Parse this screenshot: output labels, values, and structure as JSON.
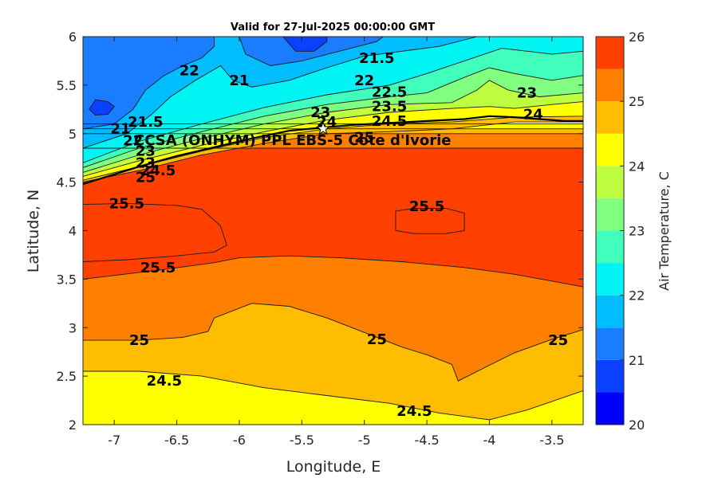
{
  "chart_data": {
    "type": "contour",
    "title": "Valid for 27-Jul-2025 00:00:00 GMT",
    "xlabel": "Longitude, E",
    "ylabel": "Latitude, N",
    "colorbar_label": "Air Temperature, C",
    "xlim": [
      -7.25,
      -3.25
    ],
    "ylim": [
      2,
      6
    ],
    "xticks": [
      -7,
      -6.5,
      -6,
      -5.5,
      -5,
      -4.5,
      -4,
      -3.5
    ],
    "xtick_labels": [
      "-7",
      "-6.5",
      "-6",
      "-5.5",
      "-5",
      "-4.5",
      "-4",
      "-3.5"
    ],
    "yticks": [
      2,
      2.5,
      3,
      3.5,
      4,
      4.5,
      5,
      5.5,
      6
    ],
    "ytick_labels": [
      "2",
      "2.5",
      "3",
      "3.5",
      "4",
      "4.5",
      "5",
      "5.5",
      "6"
    ],
    "colorbar": {
      "min": 20,
      "max": 26,
      "ticks": [
        20,
        21,
        22,
        23,
        24,
        25,
        26
      ],
      "tick_labels": [
        "20",
        "21",
        "22",
        "23",
        "24",
        "25",
        "26"
      ],
      "levels": [
        {
          "from": 20,
          "to": 20.5,
          "color": "#0000ff"
        },
        {
          "from": 20.5,
          "to": 21,
          "color": "#0a40ff"
        },
        {
          "from": 21,
          "to": 21.5,
          "color": "#1a7dff"
        },
        {
          "from": 21.5,
          "to": 22,
          "color": "#00bdff"
        },
        {
          "from": 22,
          "to": 22.5,
          "color": "#00f4f4"
        },
        {
          "from": 22.5,
          "to": 23,
          "color": "#40ffbd"
        },
        {
          "from": 23,
          "to": 23.5,
          "color": "#80ff80"
        },
        {
          "from": 23.5,
          "to": 24,
          "color": "#bdff40"
        },
        {
          "from": 24,
          "to": 24.5,
          "color": "#ffff00"
        },
        {
          "from": 24.5,
          "to": 25,
          "color": "#ffbd00"
        },
        {
          "from": 25,
          "to": 25.5,
          "color": "#ff8000"
        },
        {
          "from": 25.5,
          "to": 26,
          "color": "#ff4000"
        }
      ]
    },
    "regions": [
      {
        "level": 24.0,
        "points": [
          [
            -7.25,
            2.0
          ],
          [
            -3.25,
            2.0
          ],
          [
            -3.25,
            5.1
          ],
          [
            -7.25,
            5.1
          ]
        ]
      },
      {
        "level": 24.5,
        "points": [
          [
            -7.25,
            2.55
          ],
          [
            -6.8,
            2.55
          ],
          [
            -6.3,
            2.5
          ],
          [
            -5.8,
            2.38
          ],
          [
            -5.3,
            2.3
          ],
          [
            -4.8,
            2.22
          ],
          [
            -4.4,
            2.12
          ],
          [
            -4.0,
            2.05
          ],
          [
            -3.7,
            2.15
          ],
          [
            -3.25,
            2.35
          ],
          [
            -3.25,
            5.05
          ],
          [
            -7.25,
            5.05
          ]
        ]
      },
      {
        "level": 25.0,
        "points": [
          [
            -7.25,
            2.87
          ],
          [
            -6.8,
            2.87
          ],
          [
            -6.45,
            2.9
          ],
          [
            -6.25,
            2.96
          ],
          [
            -6.2,
            3.1
          ],
          [
            -5.9,
            3.25
          ],
          [
            -5.6,
            3.22
          ],
          [
            -5.3,
            3.1
          ],
          [
            -5.0,
            2.95
          ],
          [
            -4.7,
            2.8
          ],
          [
            -4.5,
            2.72
          ],
          [
            -4.3,
            2.62
          ],
          [
            -4.25,
            2.45
          ],
          [
            -4.05,
            2.58
          ],
          [
            -3.8,
            2.74
          ],
          [
            -3.5,
            2.88
          ],
          [
            -3.25,
            2.98
          ],
          [
            -3.25,
            5.0
          ],
          [
            -7.25,
            5.0
          ]
        ]
      },
      {
        "level": 25.5,
        "points": [
          [
            -7.25,
            3.5
          ],
          [
            -6.6,
            3.6
          ],
          [
            -6.2,
            3.67
          ],
          [
            -6.0,
            3.72
          ],
          [
            -5.6,
            3.74
          ],
          [
            -5.2,
            3.72
          ],
          [
            -4.7,
            3.68
          ],
          [
            -4.2,
            3.62
          ],
          [
            -3.8,
            3.55
          ],
          [
            -3.5,
            3.48
          ],
          [
            -3.25,
            3.42
          ],
          [
            -3.25,
            4.85
          ],
          [
            -7.25,
            4.85
          ]
        ]
      },
      {
        "level": 25.5,
        "points": [
          [
            -7.25,
            4.27
          ],
          [
            -6.9,
            4.28
          ],
          [
            -6.5,
            4.26
          ],
          [
            -6.3,
            4.22
          ],
          [
            -6.15,
            4.05
          ],
          [
            -6.1,
            3.85
          ],
          [
            -6.2,
            3.78
          ],
          [
            -6.5,
            3.74
          ],
          [
            -6.9,
            3.7
          ],
          [
            -7.25,
            3.68
          ]
        ]
      },
      {
        "level": 25.5,
        "points": [
          [
            -4.75,
            4.2
          ],
          [
            -4.6,
            4.23
          ],
          [
            -4.35,
            4.23
          ],
          [
            -4.2,
            4.18
          ],
          [
            -4.2,
            4.0
          ],
          [
            -4.35,
            3.97
          ],
          [
            -4.6,
            3.97
          ],
          [
            -4.75,
            4.0
          ]
        ]
      },
      {
        "level": 24.5,
        "points": [
          [
            -7.25,
            4.5
          ],
          [
            -6.8,
            4.62
          ],
          [
            -6.3,
            4.78
          ],
          [
            -5.8,
            4.9
          ],
          [
            -5.3,
            5.0
          ],
          [
            -4.8,
            5.02
          ],
          [
            -4.3,
            5.05
          ],
          [
            -3.8,
            5.12
          ],
          [
            -3.25,
            5.12
          ],
          [
            -3.25,
            6.0
          ],
          [
            -7.25,
            6.0
          ]
        ]
      },
      {
        "level": 24.0,
        "points": [
          [
            -7.25,
            4.52
          ],
          [
            -6.8,
            4.66
          ],
          [
            -6.3,
            4.82
          ],
          [
            -5.8,
            4.96
          ],
          [
            -5.3,
            5.05
          ],
          [
            -4.8,
            5.1
          ],
          [
            -4.3,
            5.12
          ],
          [
            -3.8,
            5.17
          ],
          [
            -3.25,
            5.18
          ],
          [
            -3.25,
            6.0
          ],
          [
            -7.25,
            6.0
          ]
        ]
      },
      {
        "level": 23.5,
        "points": [
          [
            -7.25,
            4.56
          ],
          [
            -6.8,
            4.72
          ],
          [
            -6.3,
            4.88
          ],
          [
            -5.8,
            5.02
          ],
          [
            -5.3,
            5.14
          ],
          [
            -4.8,
            5.22
          ],
          [
            -4.3,
            5.26
          ],
          [
            -4.0,
            5.28
          ],
          [
            -3.8,
            5.26
          ],
          [
            -3.5,
            5.3
          ],
          [
            -3.25,
            5.33
          ],
          [
            -3.25,
            6.0
          ],
          [
            -7.25,
            6.0
          ]
        ]
      },
      {
        "level": 23.0,
        "points": [
          [
            -7.25,
            4.6
          ],
          [
            -6.8,
            4.78
          ],
          [
            -6.3,
            4.95
          ],
          [
            -5.8,
            5.1
          ],
          [
            -5.3,
            5.22
          ],
          [
            -4.8,
            5.3
          ],
          [
            -4.3,
            5.32
          ],
          [
            -4.1,
            5.45
          ],
          [
            -4.0,
            5.55
          ],
          [
            -3.85,
            5.45
          ],
          [
            -3.6,
            5.38
          ],
          [
            -3.25,
            5.42
          ],
          [
            -3.25,
            6.0
          ],
          [
            -7.25,
            6.0
          ]
        ]
      },
      {
        "level": 22.5,
        "points": [
          [
            -7.25,
            4.65
          ],
          [
            -6.8,
            4.85
          ],
          [
            -6.3,
            5.02
          ],
          [
            -5.8,
            5.18
          ],
          [
            -5.3,
            5.3
          ],
          [
            -4.8,
            5.38
          ],
          [
            -4.5,
            5.42
          ],
          [
            -4.2,
            5.58
          ],
          [
            -4.0,
            5.68
          ],
          [
            -3.8,
            5.62
          ],
          [
            -3.5,
            5.55
          ],
          [
            -3.25,
            5.6
          ],
          [
            -3.25,
            6.0
          ],
          [
            -7.25,
            6.0
          ]
        ]
      },
      {
        "level": 22.0,
        "points": [
          [
            -7.25,
            4.7
          ],
          [
            -6.8,
            4.92
          ],
          [
            -6.3,
            5.1
          ],
          [
            -5.8,
            5.27
          ],
          [
            -5.3,
            5.4
          ],
          [
            -4.8,
            5.5
          ],
          [
            -4.5,
            5.62
          ],
          [
            -4.2,
            5.75
          ],
          [
            -3.9,
            5.88
          ],
          [
            -3.5,
            5.82
          ],
          [
            -3.25,
            5.85
          ],
          [
            -3.25,
            6.0
          ],
          [
            -7.25,
            6.0
          ]
        ]
      },
      {
        "level": 21.5,
        "points": [
          [
            -7.25,
            4.85
          ],
          [
            -6.9,
            5.0
          ],
          [
            -6.7,
            5.2
          ],
          [
            -6.55,
            5.38
          ],
          [
            -6.35,
            5.55
          ],
          [
            -6.15,
            5.7
          ],
          [
            -6.05,
            5.55
          ],
          [
            -5.9,
            5.48
          ],
          [
            -5.6,
            5.55
          ],
          [
            -5.3,
            5.68
          ],
          [
            -5.0,
            5.8
          ],
          [
            -4.7,
            5.85
          ],
          [
            -4.4,
            5.9
          ],
          [
            -4.1,
            6.0
          ],
          [
            -7.25,
            6.0
          ]
        ]
      },
      {
        "level": 21.0,
        "points": [
          [
            -7.25,
            5.05
          ],
          [
            -7.0,
            5.1
          ],
          [
            -6.85,
            5.25
          ],
          [
            -6.75,
            5.45
          ],
          [
            -6.6,
            5.6
          ],
          [
            -6.45,
            5.7
          ],
          [
            -6.3,
            5.78
          ],
          [
            -6.2,
            5.9
          ],
          [
            -6.2,
            6.0
          ],
          [
            -7.25,
            6.0
          ]
        ]
      },
      {
        "level": 21.0,
        "points": [
          [
            -6.0,
            6.0
          ],
          [
            -5.95,
            5.82
          ],
          [
            -5.75,
            5.7
          ],
          [
            -5.5,
            5.75
          ],
          [
            -5.2,
            5.85
          ],
          [
            -4.9,
            5.95
          ],
          [
            -4.85,
            6.0
          ]
        ]
      },
      {
        "level": 20.5,
        "points": [
          [
            -7.15,
            5.35
          ],
          [
            -7.05,
            5.33
          ],
          [
            -7.0,
            5.28
          ],
          [
            -7.05,
            5.2
          ],
          [
            -7.15,
            5.19
          ],
          [
            -7.2,
            5.25
          ]
        ]
      },
      {
        "level": 20.5,
        "points": [
          [
            -5.65,
            6.0
          ],
          [
            -5.55,
            5.85
          ],
          [
            -5.4,
            5.85
          ],
          [
            -5.3,
            5.95
          ],
          [
            -5.3,
            6.0
          ]
        ]
      }
    ],
    "contour_labels": [
      {
        "text": "25",
        "lon": -6.8,
        "lat": 2.87
      },
      {
        "text": "25",
        "lon": -4.9,
        "lat": 2.88
      },
      {
        "text": "25",
        "lon": -3.45,
        "lat": 2.87
      },
      {
        "text": "24.5",
        "lon": -6.6,
        "lat": 2.45
      },
      {
        "text": "24.5",
        "lon": -4.6,
        "lat": 2.14
      },
      {
        "text": "25.5",
        "lon": -6.9,
        "lat": 4.28
      },
      {
        "text": "25.5",
        "lon": -6.65,
        "lat": 3.62
      },
      {
        "text": "25.5",
        "lon": -4.5,
        "lat": 4.25
      },
      {
        "text": "22",
        "lon": -6.4,
        "lat": 5.65
      },
      {
        "text": "21",
        "lon": -6.0,
        "lat": 5.55
      },
      {
        "text": "21.5",
        "lon": -4.9,
        "lat": 5.78
      },
      {
        "text": "22",
        "lon": -5.0,
        "lat": 5.55
      },
      {
        "text": "22.5",
        "lon": -4.8,
        "lat": 5.43
      },
      {
        "text": "23.5",
        "lon": -4.8,
        "lat": 5.28
      },
      {
        "text": "24.5",
        "lon": -4.8,
        "lat": 5.13
      },
      {
        "text": "23",
        "lon": -3.7,
        "lat": 5.42
      },
      {
        "text": "24",
        "lon": -3.65,
        "lat": 5.2
      },
      {
        "text": "23",
        "lon": -5.35,
        "lat": 5.22
      },
      {
        "text": "24",
        "lon": -5.3,
        "lat": 5.12
      },
      {
        "text": "25",
        "lon": -5.0,
        "lat": 4.96
      },
      {
        "text": "21",
        "lon": -6.95,
        "lat": 5.05
      },
      {
        "text": "21.5",
        "lon": -6.75,
        "lat": 5.12
      },
      {
        "text": "22",
        "lon": -6.85,
        "lat": 4.93
      },
      {
        "text": "23",
        "lon": -6.75,
        "lat": 4.82
      },
      {
        "text": "23",
        "lon": -6.75,
        "lat": 4.7
      },
      {
        "text": "24.5",
        "lon": -6.65,
        "lat": 4.62
      },
      {
        "text": "25",
        "lon": -6.75,
        "lat": 4.55
      }
    ],
    "site": {
      "label": "CCSA (ONHYM) PPL EBS-5 Cote d'Ivorie",
      "lon": -5.33,
      "lat": 5.05
    },
    "coastline": [
      [
        -7.25,
        4.48
      ],
      [
        -7.0,
        4.58
      ],
      [
        -6.8,
        4.66
      ],
      [
        -6.5,
        4.77
      ],
      [
        -6.2,
        4.86
      ],
      [
        -5.9,
        4.95
      ],
      [
        -5.6,
        5.03
      ],
      [
        -5.35,
        5.06
      ],
      [
        -5.1,
        5.09
      ],
      [
        -4.8,
        5.11
      ],
      [
        -4.5,
        5.13
      ],
      [
        -4.2,
        5.15
      ],
      [
        -4.0,
        5.18
      ],
      [
        -3.8,
        5.17
      ],
      [
        -3.6,
        5.15
      ],
      [
        -3.4,
        5.13
      ],
      [
        -3.25,
        5.13
      ]
    ]
  }
}
